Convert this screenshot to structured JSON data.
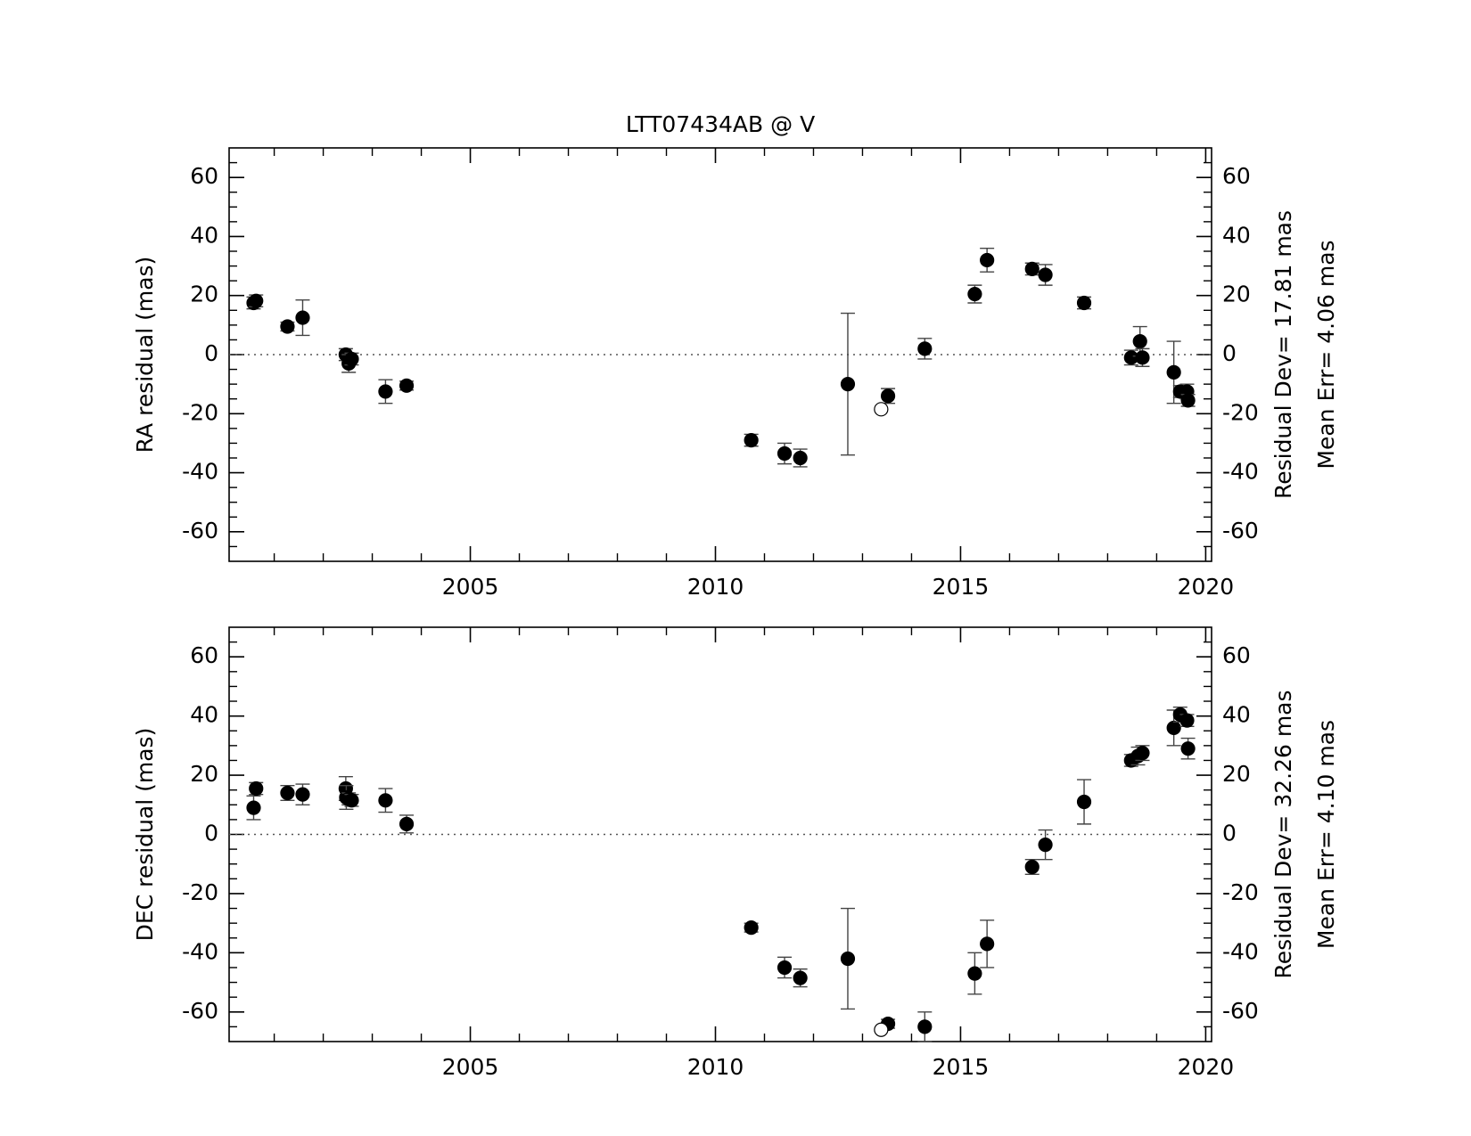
{
  "chart_data": [
    {
      "type": "scatter",
      "title": "LTT07434AB @ V",
      "ylabel": "RA residual (mas)",
      "annotations": [
        "Residual Dev= 17.81 mas",
        "Mean Err= 4.06 mas"
      ],
      "xlim": [
        2000.08,
        2020.12
      ],
      "ylim": [
        -70,
        70
      ],
      "xticks": [
        2005,
        2010,
        2015,
        2020
      ],
      "xminorticks": [
        2001,
        2002,
        2003,
        2004,
        2006,
        2007,
        2008,
        2009,
        2011,
        2012,
        2013,
        2014,
        2016,
        2017,
        2018,
        2019
      ],
      "yticks": [
        -60,
        -40,
        -20,
        0,
        20,
        40,
        60
      ],
      "yminorticks": [
        -65,
        -55,
        -50,
        -45,
        -35,
        -30,
        -25,
        -15,
        -10,
        -5,
        5,
        10,
        15,
        25,
        30,
        35,
        45,
        50,
        55,
        65
      ],
      "hline": 0,
      "series": [
        {
          "marker": "filled",
          "color": "#000000",
          "x": [
            2000.58,
            2000.63,
            2001.27,
            2001.58,
            2002.46,
            2002.52,
            2002.58,
            2003.27,
            2003.7,
            2010.73,
            2011.41,
            2011.73,
            2012.7,
            2013.52,
            2014.27,
            2015.29,
            2015.54,
            2016.46,
            2016.73,
            2017.52,
            2018.48,
            2018.66,
            2018.71,
            2019.35,
            2019.48,
            2019.62,
            2019.64
          ],
          "values": [
            17.5,
            18.2,
            9.5,
            12.5,
            0,
            -3,
            -1.5,
            -12.5,
            -10.5,
            -29,
            -33.5,
            -35,
            -10,
            -14,
            2,
            20.5,
            32,
            29,
            27,
            17.5,
            -1,
            4.5,
            -1,
            -6,
            -12.5,
            -12.5,
            -15.5
          ],
          "errors": [
            2,
            2,
            1.5,
            6,
            2,
            3,
            2,
            4,
            1.5,
            2,
            3.5,
            3,
            24,
            2.5,
            3.5,
            3,
            4,
            2,
            3.5,
            2,
            2.5,
            5,
            3,
            10.5,
            2,
            2.5,
            2
          ]
        },
        {
          "marker": "open",
          "color": "#000000",
          "x": [
            2013.38
          ],
          "values": [
            -18.5
          ]
        }
      ]
    },
    {
      "type": "scatter",
      "ylabel": "DEC residual (mas)",
      "annotations": [
        "Residual Dev= 32.26 mas",
        "Mean Err= 4.10 mas"
      ],
      "xlim": [
        2000.08,
        2020.12
      ],
      "ylim": [
        -70,
        70
      ],
      "xticks": [
        2005,
        2010,
        2015,
        2020
      ],
      "xminorticks": [
        2001,
        2002,
        2003,
        2004,
        2006,
        2007,
        2008,
        2009,
        2011,
        2012,
        2013,
        2014,
        2016,
        2017,
        2018,
        2019
      ],
      "yticks": [
        -60,
        -40,
        -20,
        0,
        20,
        40,
        60
      ],
      "yminorticks": [
        -65,
        -55,
        -50,
        -45,
        -35,
        -30,
        -25,
        -15,
        -10,
        -5,
        5,
        10,
        15,
        25,
        30,
        35,
        45,
        50,
        55,
        65
      ],
      "hline": 0,
      "series": [
        {
          "marker": "filled",
          "color": "#000000",
          "x": [
            2000.58,
            2000.63,
            2001.27,
            2001.58,
            2002.46,
            2002.47,
            2002.52,
            2002.58,
            2003.27,
            2003.7,
            2010.73,
            2011.41,
            2011.73,
            2012.7,
            2013.52,
            2014.27,
            2015.29,
            2015.54,
            2016.46,
            2016.73,
            2017.52,
            2018.48,
            2018.62,
            2018.71,
            2019.35,
            2019.48,
            2019.62,
            2019.64
          ],
          "values": [
            9,
            15.5,
            14,
            13.5,
            15.5,
            12.5,
            12,
            11.5,
            11.5,
            3.5,
            -31.5,
            -45,
            -48.5,
            -42,
            -64,
            -65,
            -47,
            -37,
            -11,
            -3.5,
            11,
            25,
            26.5,
            27.5,
            36,
            40.5,
            38.5,
            29
          ],
          "errors": [
            4,
            2,
            2.5,
            3.5,
            4,
            4,
            2,
            2,
            4,
            3,
            1.5,
            3.5,
            3,
            17,
            1.5,
            5,
            7,
            8,
            2.5,
            5,
            7.5,
            2,
            3,
            2.5,
            6,
            2.5,
            2,
            3.5
          ]
        },
        {
          "marker": "open",
          "color": "#000000",
          "x": [
            2013.38
          ],
          "values": [
            -66
          ]
        }
      ]
    }
  ]
}
